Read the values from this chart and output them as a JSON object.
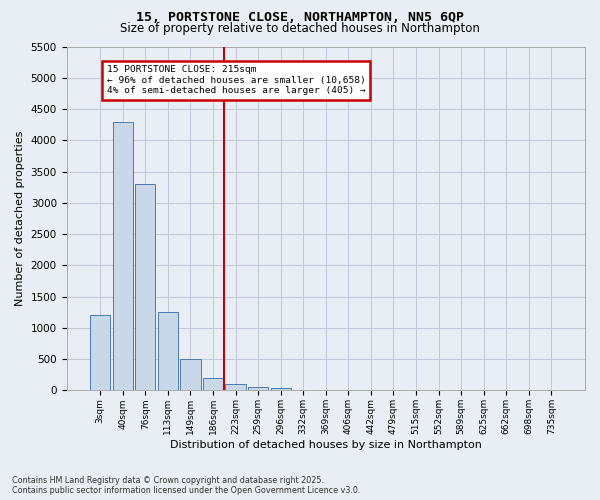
{
  "title1": "15, PORTSTONE CLOSE, NORTHAMPTON, NN5 6QP",
  "title2": "Size of property relative to detached houses in Northampton",
  "xlabel": "Distribution of detached houses by size in Northampton",
  "ylabel": "Number of detached properties",
  "footer1": "Contains HM Land Registry data © Crown copyright and database right 2025.",
  "footer2": "Contains public sector information licensed under the Open Government Licence v3.0.",
  "bin_labels": [
    "3sqm",
    "40sqm",
    "76sqm",
    "113sqm",
    "149sqm",
    "186sqm",
    "223sqm",
    "259sqm",
    "296sqm",
    "332sqm",
    "369sqm",
    "406sqm",
    "442sqm",
    "479sqm",
    "515sqm",
    "552sqm",
    "589sqm",
    "625sqm",
    "662sqm",
    "698sqm",
    "735sqm"
  ],
  "bar_values": [
    1200,
    4300,
    3300,
    1250,
    500,
    200,
    100,
    60,
    40,
    10,
    0,
    0,
    0,
    0,
    0,
    0,
    0,
    0,
    0,
    0,
    0
  ],
  "bar_color": "#c8d8e8",
  "bar_edge_color": "#4a7ab5",
  "grid_color": "#c0c8d8",
  "bg_color": "#e8eef4",
  "vline_x_index": 6,
  "annotation_text": "15 PORTSTONE CLOSE: 215sqm\n← 96% of detached houses are smaller (10,658)\n4% of semi-detached houses are larger (405) →",
  "annotation_box_color": "#ffffff",
  "annotation_box_edge": "#cc0000",
  "vline_color": "#cc0000",
  "ylim": [
    0,
    5500
  ],
  "yticks": [
    0,
    500,
    1000,
    1500,
    2000,
    2500,
    3000,
    3500,
    4000,
    4500,
    5000,
    5500
  ]
}
